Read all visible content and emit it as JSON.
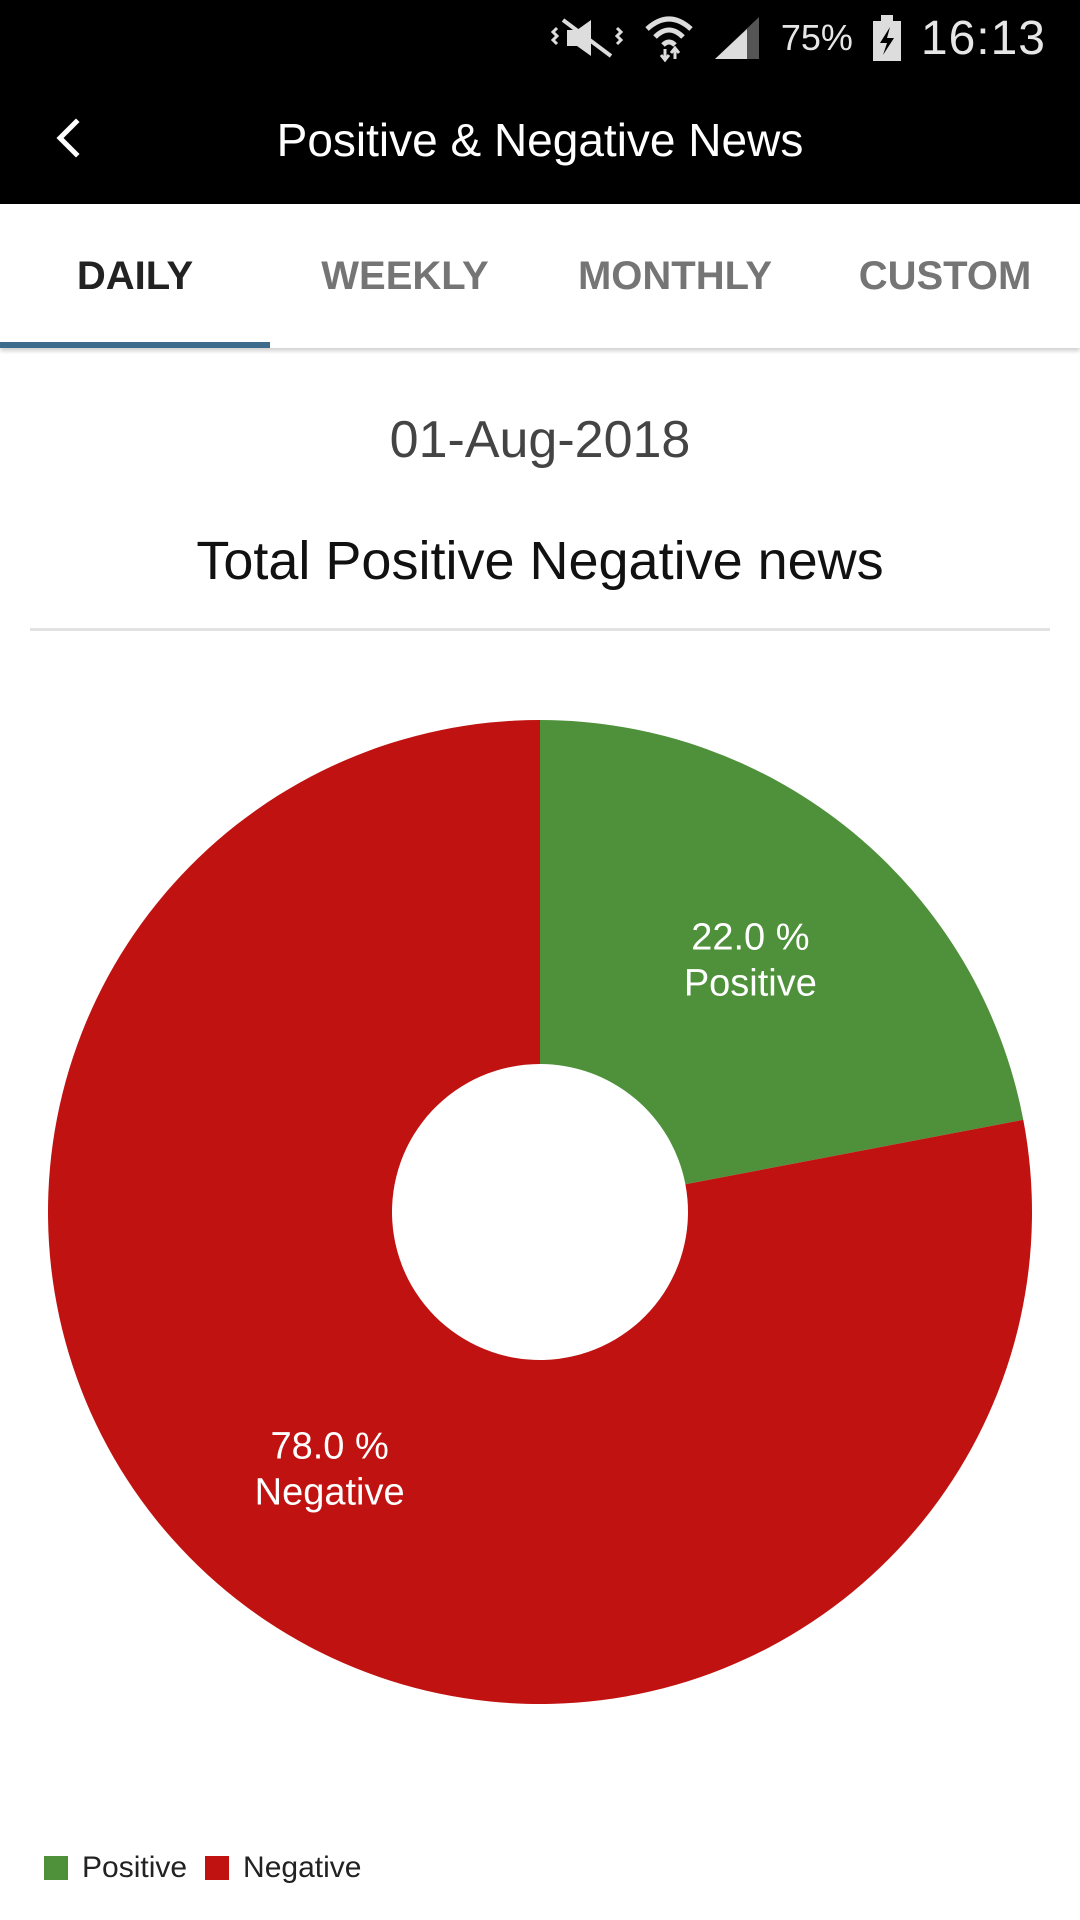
{
  "status_bar": {
    "battery": "75%",
    "time": "16:13",
    "icons": [
      "mute-vibrate-icon",
      "wifi-icon",
      "signal-icon",
      "battery-charging-icon"
    ]
  },
  "app_bar": {
    "title": "Positive & Negative News",
    "back_icon": "chevron-left-icon"
  },
  "tabs": [
    {
      "label": "DAILY",
      "active": true
    },
    {
      "label": "WEEKLY",
      "active": false
    },
    {
      "label": "MONTHLY",
      "active": false
    },
    {
      "label": "CUSTOM",
      "active": false
    }
  ],
  "date": "01-Aug-2018",
  "section_title": "Total Positive  Negative news",
  "colors": {
    "positive": "#4e913a",
    "negative": "#c01311",
    "tab_indicator": "#3d6b8c"
  },
  "chart_data": {
    "type": "pie",
    "donut": true,
    "slices": [
      {
        "name": "Positive",
        "value": 22.0,
        "label": "22.0 %",
        "color": "#4e913a"
      },
      {
        "name": "Negative",
        "value": 78.0,
        "label": "78.0 %",
        "color": "#c01311"
      }
    ],
    "legend": [
      "Positive",
      "Negative"
    ],
    "legend_position": "bottom-left"
  }
}
